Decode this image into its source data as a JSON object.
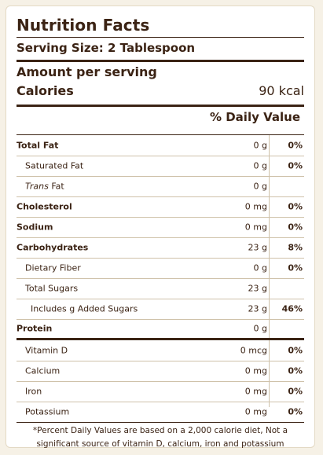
{
  "label": {
    "title": "Nutrition Facts",
    "serving_size": "Serving Size: 2 Tablespoon",
    "amount_per_serving": "Amount per serving",
    "calories_label": "Calories",
    "calories_value": "90 kcal",
    "daily_value_header": "% Daily Value"
  },
  "nutrients": [
    {
      "name": "Total Fat",
      "amount": "0 g",
      "dv": "0%"
    },
    {
      "name": "Saturated Fat",
      "amount": "0 g",
      "dv": "0%"
    },
    {
      "name_italic": "Trans",
      "name_rest": " Fat",
      "amount": "0 g",
      "dv": ""
    },
    {
      "name": "Cholesterol",
      "amount": "0 mg",
      "dv": "0%"
    },
    {
      "name": "Sodium",
      "amount": "0 mg",
      "dv": "0%"
    },
    {
      "name": "Carbohydrates",
      "amount": "23 g",
      "dv": "8%"
    },
    {
      "name": "Dietary Fiber",
      "amount": "0 g",
      "dv": "0%"
    },
    {
      "name": "Total Sugars",
      "amount": "23 g",
      "dv": ""
    },
    {
      "name": "Includes g Added Sugars",
      "amount": "23 g",
      "dv": "46%"
    },
    {
      "name": "Protein",
      "amount": "0 g",
      "dv": ""
    },
    {
      "name": "Vitamin D",
      "amount": "0 mcg",
      "dv": "0%"
    },
    {
      "name": "Calcium",
      "amount": "0 mg",
      "dv": "0%"
    },
    {
      "name": "Iron",
      "amount": "0 mg",
      "dv": "0%"
    },
    {
      "name": "Potassium",
      "amount": "0 mg",
      "dv": "0%"
    }
  ],
  "footnote": "*Percent Daily Values are based on a 2,000 calorie diet, Not a significant source of vitamin D, calcium, iron and potassium"
}
